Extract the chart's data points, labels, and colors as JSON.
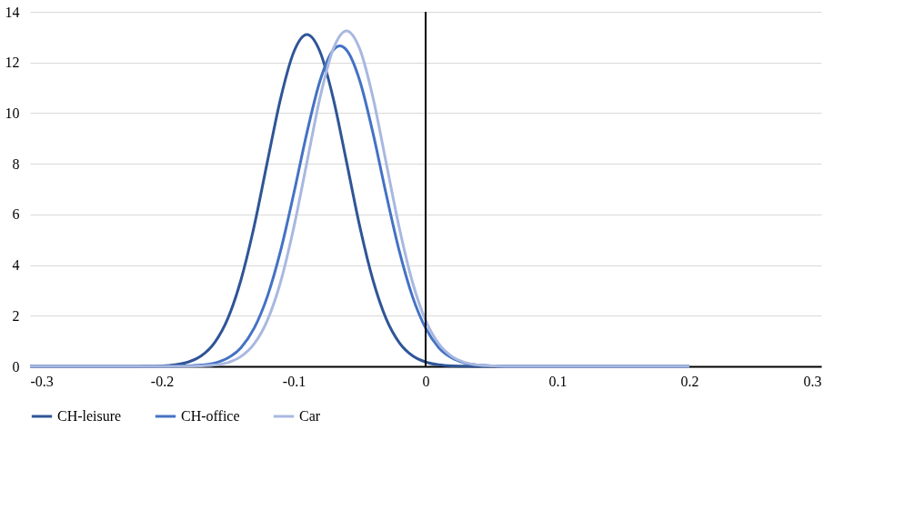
{
  "chart_data": {
    "type": "line",
    "xlim": [
      -0.3,
      0.3
    ],
    "xticks": [
      -0.3,
      -0.2,
      -0.1,
      0,
      0.1,
      0.2,
      0.3
    ],
    "ylim": [
      0,
      14
    ],
    "yticks": [
      0,
      2,
      4,
      6,
      8,
      10,
      12,
      14
    ],
    "grid": "y",
    "legend": "bottom",
    "marker": "none",
    "line_style": "solid",
    "ref_lines": [
      {
        "axis": "x",
        "value": 0,
        "color": "#000000"
      }
    ],
    "series": [
      {
        "name": "CH-leisure",
        "color": "#2f5597",
        "x": [
          -0.3,
          -0.22,
          -0.21,
          -0.2,
          -0.19,
          -0.18,
          -0.17,
          -0.16,
          -0.15,
          -0.14,
          -0.13,
          -0.12,
          -0.11,
          -0.1,
          -0.09,
          -0.08,
          -0.07,
          -0.06,
          -0.05,
          -0.04,
          -0.03,
          -0.02,
          -0.01,
          0,
          0.01,
          0.02,
          0.03,
          0.04,
          0.2
        ],
        "values": [
          0,
          0,
          0.01,
          0.02,
          0.06,
          0.17,
          0.42,
          0.94,
          1.89,
          3.42,
          5.54,
          8.08,
          10.57,
          12.41,
          13.1,
          12.41,
          10.57,
          8.08,
          5.54,
          3.42,
          1.89,
          0.94,
          0.42,
          0.17,
          0.06,
          0.02,
          0.01,
          0,
          0
        ]
      },
      {
        "name": "CH-office",
        "color": "#4472c4",
        "x": [
          -0.3,
          -0.19,
          -0.18,
          -0.17,
          -0.16,
          -0.15,
          -0.14,
          -0.13,
          -0.12,
          -0.11,
          -0.1,
          -0.09,
          -0.08,
          -0.07,
          -0.065,
          -0.06,
          -0.05,
          -0.04,
          -0.03,
          -0.02,
          -0.01,
          0,
          0.01,
          0.02,
          0.03,
          0.04,
          0.05,
          0.06,
          0.2
        ],
        "values": [
          0,
          0,
          0.02,
          0.05,
          0.13,
          0.33,
          0.74,
          1.51,
          2.76,
          4.56,
          6.82,
          9.23,
          11.29,
          12.49,
          12.65,
          12.49,
          11.29,
          9.23,
          6.82,
          4.56,
          2.76,
          1.51,
          0.74,
          0.33,
          0.13,
          0.05,
          0.02,
          0,
          0
        ]
      },
      {
        "name": "Car",
        "color": "#a9b8e0",
        "x": [
          -0.3,
          -0.18,
          -0.17,
          -0.16,
          -0.15,
          -0.14,
          -0.13,
          -0.12,
          -0.11,
          -0.1,
          -0.09,
          -0.08,
          -0.07,
          -0.06,
          -0.05,
          -0.04,
          -0.03,
          -0.02,
          -0.01,
          0,
          0.01,
          0.02,
          0.03,
          0.04,
          0.05,
          0.06,
          0.2
        ],
        "values": [
          0,
          0,
          0.02,
          0.05,
          0.15,
          0.39,
          0.89,
          1.82,
          3.33,
          5.48,
          8.06,
          10.63,
          12.54,
          13.25,
          12.54,
          10.63,
          8.06,
          5.48,
          3.33,
          1.82,
          0.89,
          0.39,
          0.15,
          0.05,
          0.02,
          0,
          0
        ]
      }
    ]
  }
}
